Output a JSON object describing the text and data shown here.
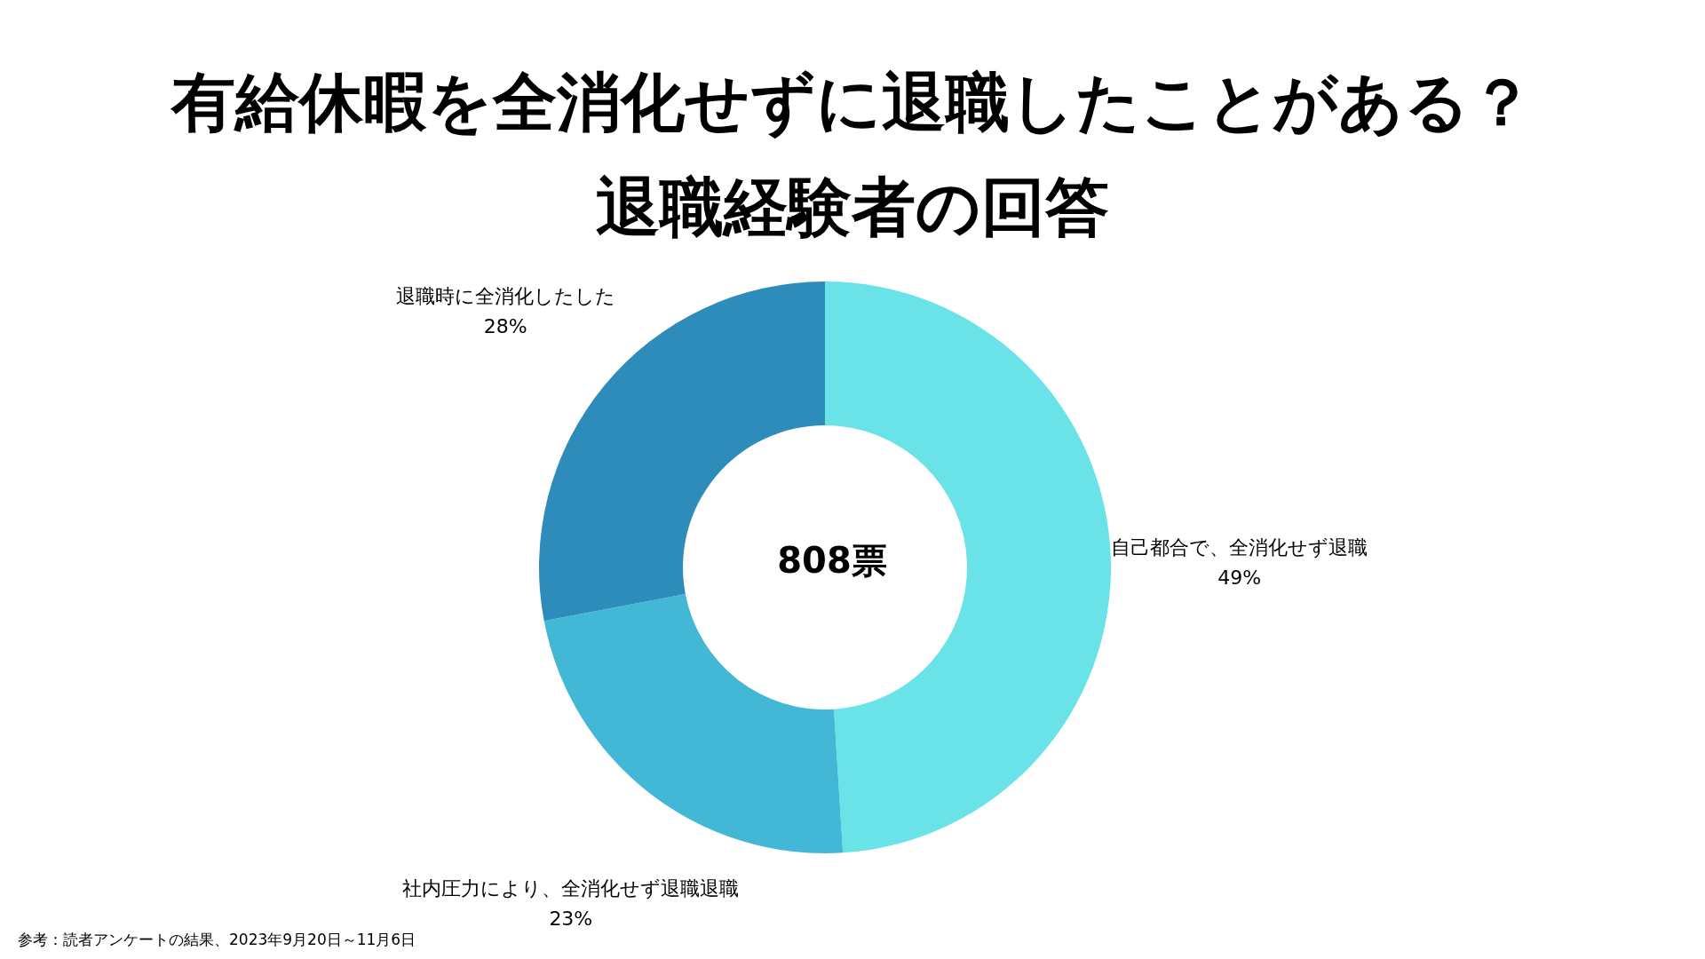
{
  "chart_data": {
    "type": "donut",
    "title": "有給休暇を全消化せずに退職したことがある？",
    "subtitle": "退職経験者の回答",
    "categories": [
      "自己都合で、全消化せず退職",
      "社内圧力により、全消化せず退職退職",
      "退職時に全消化したした"
    ],
    "values": [
      49,
      23,
      28
    ],
    "colors": [
      "#6ae3e8",
      "#42b8d6",
      "#2e8cba"
    ],
    "value_labels": [
      "49%",
      "23%",
      "28%"
    ],
    "annotations": [
      "808票",
      "参考：読者アンケートの結果、2023年9月20日～11月6日"
    ]
  }
}
